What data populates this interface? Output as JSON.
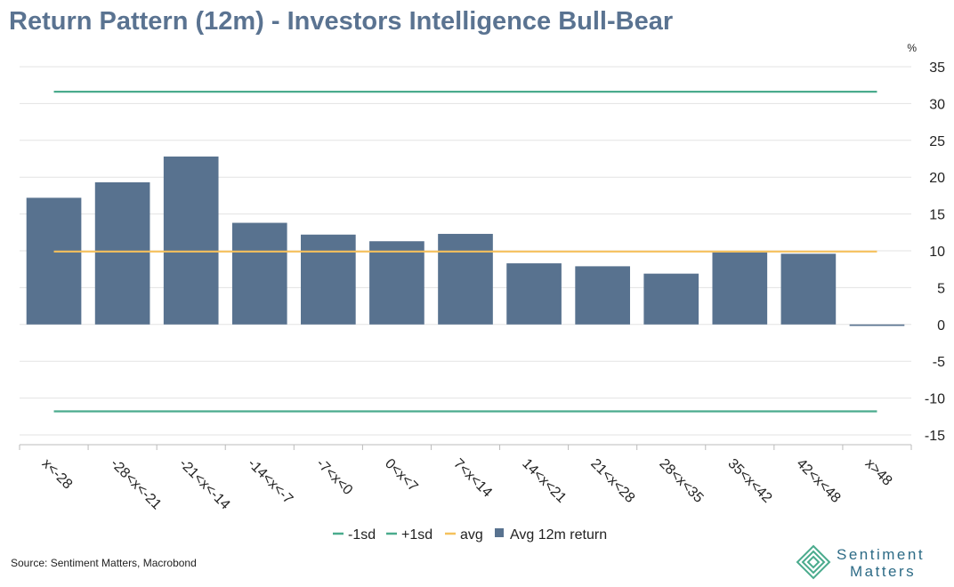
{
  "title": "Return Pattern (12m) - Investors Intelligence Bull-Bear",
  "source": "Source: Sentiment Matters, Macrobond",
  "logo": {
    "line1": "Sentiment",
    "line2": "Matters",
    "icon": "diamond-logo-icon"
  },
  "colors": {
    "bar": "#58728f",
    "sd": "#4aab8d",
    "avg": "#f5c15c",
    "grid": "#e3e3e3",
    "title": "#5a7391",
    "logo": "#2d6b86"
  },
  "chart_data": {
    "type": "bar",
    "title": "Return Pattern (12m) - Investors Intelligence Bull-Bear",
    "unit": "%",
    "xlabel": "",
    "ylabel": "%",
    "ylim": [
      -15,
      35
    ],
    "yticks": [
      35,
      30,
      25,
      20,
      15,
      10,
      5,
      0,
      -5,
      -10,
      -15
    ],
    "grid": true,
    "legend_position": "bottom",
    "categories": [
      "x<-28",
      "-28<x<-21",
      "-21<x<-14",
      "-14<x<-7",
      "-7<x<0",
      "0<x<7",
      "7<x<14",
      "14<x<21",
      "21<x<28",
      "28<x<35",
      "35<x<42",
      "42<x<48",
      "x>48"
    ],
    "series": [
      {
        "name": "Avg 12m return",
        "kind": "bar",
        "values": [
          17.2,
          19.3,
          22.8,
          13.8,
          12.2,
          11.3,
          12.3,
          8.3,
          7.9,
          6.9,
          9.8,
          9.6,
          -0.2
        ]
      },
      {
        "name": "-1sd",
        "kind": "line",
        "value": -11.8
      },
      {
        "name": "+1sd",
        "kind": "line",
        "value": 31.6
      },
      {
        "name": "avg",
        "kind": "line",
        "value": 9.9
      }
    ],
    "legend": [
      "-1sd",
      "+1sd",
      "avg",
      "Avg 12m return"
    ]
  }
}
